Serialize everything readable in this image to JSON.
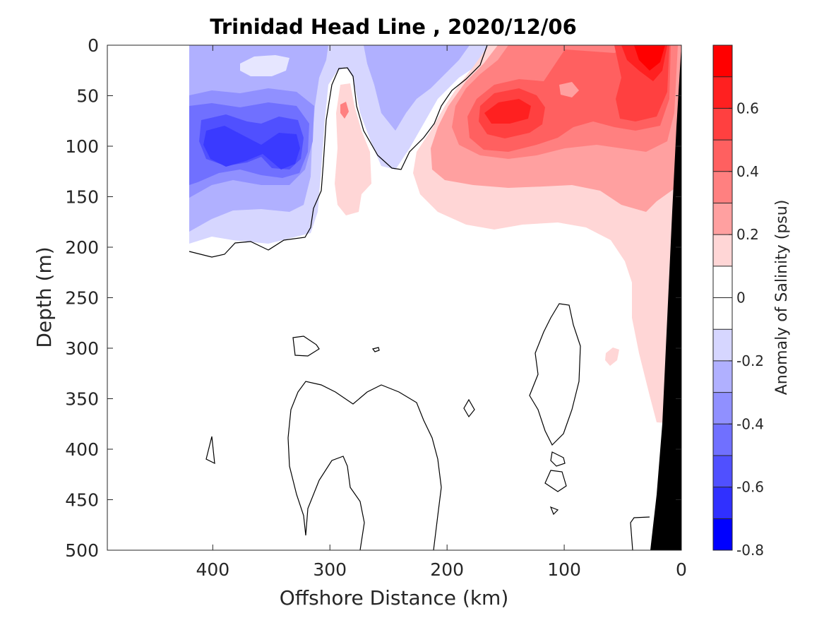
{
  "chart_data": {
    "type": "heatmap",
    "title": "Trinidad Head Line , 2020/12/06",
    "xlabel": "Offshore Distance (km)",
    "ylabel": "Depth (m)",
    "xlim": [
      490,
      0
    ],
    "ylim": [
      500,
      0
    ],
    "x_ticks": [
      400,
      300,
      200,
      100,
      0
    ],
    "y_ticks": [
      0,
      50,
      100,
      150,
      200,
      250,
      300,
      350,
      400,
      450,
      500
    ],
    "colorbar": {
      "label": "Anomaly of Salinity (psu)",
      "min": -0.8,
      "max": 0.8,
      "ticks": [
        -0.8,
        -0.6,
        -0.4,
        -0.2,
        0,
        0.2,
        0.4,
        0.6
      ],
      "levels": [
        {
          "range": [
            0.7,
            0.8
          ],
          "color": "#ff0000"
        },
        {
          "range": [
            0.6,
            0.7
          ],
          "color": "#ff2020"
        },
        {
          "range": [
            0.5,
            0.6
          ],
          "color": "#ff4040"
        },
        {
          "range": [
            0.4,
            0.5
          ],
          "color": "#ff6060"
        },
        {
          "range": [
            0.3,
            0.4
          ],
          "color": "#ff8080"
        },
        {
          "range": [
            0.2,
            0.3
          ],
          "color": "#ffa0a0"
        },
        {
          "range": [
            0.1,
            0.2
          ],
          "color": "#ffd6d6"
        },
        {
          "range": [
            0.0,
            0.1
          ],
          "color": "#ffffff"
        },
        {
          "range": [
            -0.1,
            0.0
          ],
          "color": "#ffffff"
        },
        {
          "range": [
            -0.2,
            -0.1
          ],
          "color": "#d6d6ff"
        },
        {
          "range": [
            -0.3,
            -0.2
          ],
          "color": "#b0b0ff"
        },
        {
          "range": [
            -0.4,
            -0.3
          ],
          "color": "#9090ff"
        },
        {
          "range": [
            -0.5,
            -0.4
          ],
          "color": "#7070ff"
        },
        {
          "range": [
            -0.6,
            -0.5
          ],
          "color": "#5050ff"
        },
        {
          "range": [
            -0.7,
            -0.6
          ],
          "color": "#3030ff"
        },
        {
          "range": [
            -0.8,
            -0.7
          ],
          "color": "#0000ff"
        }
      ]
    },
    "contour_levels": [
      0
    ],
    "grid": false,
    "bathymetry_color": "#000000"
  }
}
